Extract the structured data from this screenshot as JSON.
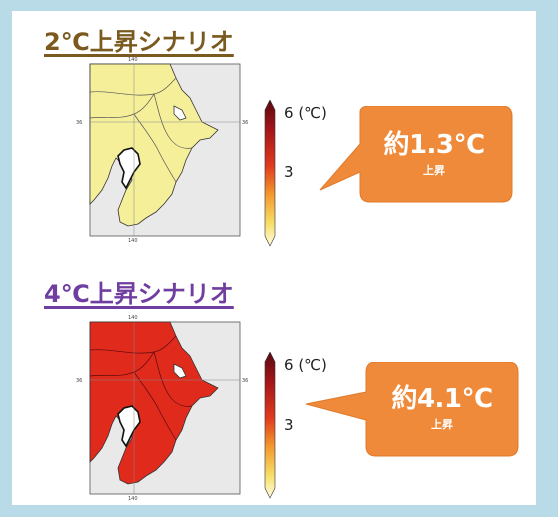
{
  "scenarios": [
    {
      "title": "2℃上昇シナリオ",
      "colorbar_max": "6",
      "colorbar_unit": "(℃)",
      "colorbar_mid": "3",
      "callout_value": "約1.3℃",
      "callout_caption": "上昇",
      "title_color": "#7a5a1e",
      "land_color": "#f5ef9a"
    },
    {
      "title": "4℃上昇シナリオ",
      "colorbar_max": "6",
      "colorbar_unit": "(℃)",
      "colorbar_mid": "3",
      "callout_value": "約4.1℃",
      "callout_caption": "上昇",
      "title_color": "#6f3ea0",
      "land_color": "#e02a1c"
    }
  ],
  "callout_color": "#ef8a3a"
}
